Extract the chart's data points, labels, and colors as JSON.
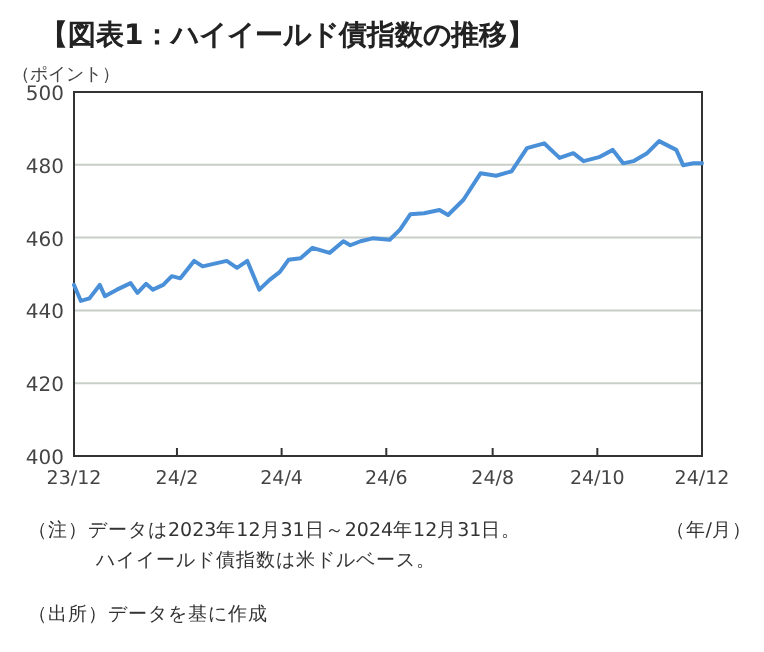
{
  "chart_data": {
    "type": "line",
    "title": "【図表1：ハイイールド債指数の推移】",
    "ylabel": "（ポイント）",
    "xlabel": "（年/月）",
    "annotations": [
      "（注）データは2023年12月31日～2024年12月31日。",
      "ハイイールド債指数は米ドルベース。",
      "（出所）データを基に作成"
    ],
    "x": [
      "2023-12-31",
      "2024-01-04",
      "2024-01-09",
      "2024-01-15",
      "2024-01-18",
      "2024-01-25",
      "2024-02-02",
      "2024-02-06",
      "2024-02-11",
      "2024-02-15",
      "2024-02-21",
      "2024-02-26",
      "2024-03-02",
      "2024-03-10",
      "2024-03-15",
      "2024-03-29",
      "2024-04-04",
      "2024-04-10",
      "2024-04-17",
      "2024-04-23",
      "2024-04-29",
      "2024-05-04",
      "2024-05-11",
      "2024-05-18",
      "2024-05-28",
      "2024-06-05",
      "2024-06-09",
      "2024-06-15",
      "2024-06-22",
      "2024-07-02",
      "2024-07-08",
      "2024-07-14",
      "2024-07-22",
      "2024-07-31",
      "2024-08-05",
      "2024-08-14",
      "2024-08-24",
      "2024-09-02",
      "2024-09-11",
      "2024-09-20",
      "2024-09-30",
      "2024-10-09",
      "2024-10-17",
      "2024-10-23",
      "2024-11-01",
      "2024-11-09",
      "2024-11-15",
      "2024-11-21",
      "2024-11-29",
      "2024-12-06",
      "2024-12-16",
      "2024-12-20",
      "2024-12-26",
      "2024-12-31"
    ],
    "series": [
      {
        "color": "#4a90d9",
        "values": [
          447.0,
          442.6,
          443.3,
          447.0,
          443.9,
          445.7,
          447.5,
          444.8,
          447.3,
          445.7,
          447.0,
          449.4,
          448.8,
          453.6,
          452.1,
          453.6,
          451.7,
          453.6,
          445.7,
          448.4,
          450.6,
          453.9,
          454.3,
          457.2,
          455.8,
          459.0,
          457.9,
          459.0,
          459.8,
          459.4,
          462.2,
          466.4,
          466.7,
          467.6,
          466.2,
          470.4,
          477.7,
          477.0,
          478.2,
          484.6,
          485.9,
          481.9,
          483.2,
          481.0,
          482.1,
          484.1,
          480.4,
          481.0,
          483.2,
          486.5,
          484.1,
          479.9,
          480.4,
          480.4
        ]
      }
    ],
    "xlim": [
      "2023-12-31",
      "2024-12-31"
    ],
    "xticks": [
      {
        "value": "2023-12-31",
        "label": "23/12"
      },
      {
        "value": "2024-02-29",
        "label": "24/2"
      },
      {
        "value": "2024-04-30",
        "label": "24/4"
      },
      {
        "value": "2024-06-30",
        "label": "24/6"
      },
      {
        "value": "2024-08-31",
        "label": "24/8"
      },
      {
        "value": "2024-10-31",
        "label": "24/10"
      },
      {
        "value": "2024-12-31",
        "label": "24/12"
      }
    ],
    "ylim": [
      400,
      500
    ],
    "yticks": [
      400,
      420,
      440,
      460,
      480,
      500
    ],
    "grid": "y",
    "marker": "none",
    "line_style": "solid"
  }
}
